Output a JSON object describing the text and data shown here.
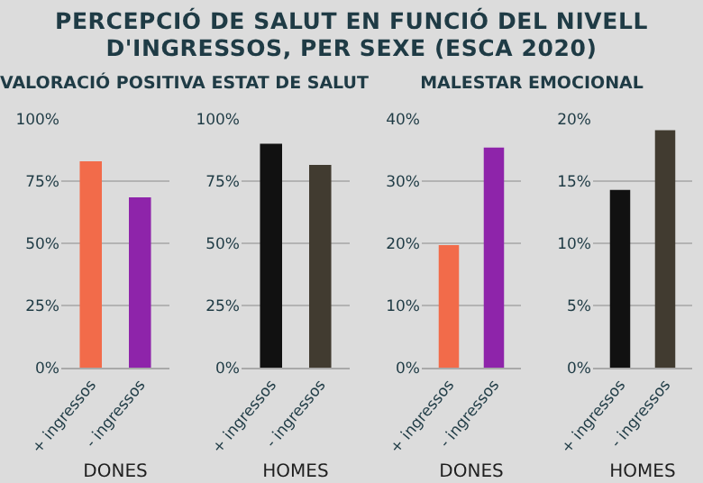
{
  "chart_data": [
    {
      "type": "bar",
      "title": "PERCEPCIÓ DE SALUT EN FUNCIÓ DEL NIVELL D'INGRESSOS, PER SEXE (ESCA 2020)",
      "subtitle": "VALORACIÓ POSITIVA ESTAT DE SALUT",
      "xlabel": "DONES",
      "categories": [
        "+ ingressos",
        "- ingressos"
      ],
      "values": [
        83,
        68.5
      ],
      "colors": [
        "#f26b4a",
        "#8e24aa"
      ],
      "ylim": [
        0,
        100
      ],
      "yticks": [
        {
          "value": 0,
          "label": "0%"
        },
        {
          "value": 25,
          "label": "25%"
        },
        {
          "value": 50,
          "label": "50%"
        },
        {
          "value": 75,
          "label": "75%"
        },
        {
          "value": 100,
          "label": "100%"
        }
      ],
      "grid": "y"
    },
    {
      "type": "bar",
      "xlabel": "HOMES",
      "categories": [
        "+ ingressos",
        "- ingressos"
      ],
      "values": [
        90,
        81.5
      ],
      "colors": [
        "#111111",
        "#413b30"
      ],
      "ylim": [
        0,
        100
      ],
      "yticks": [
        {
          "value": 0,
          "label": "0%"
        },
        {
          "value": 25,
          "label": "25%"
        },
        {
          "value": 50,
          "label": "50%"
        },
        {
          "value": 75,
          "label": "75%"
        },
        {
          "value": 100,
          "label": "100%"
        }
      ],
      "grid": "y"
    },
    {
      "type": "bar",
      "subtitle": "MALESTAR EMOCIONAL",
      "xlabel": "DONES",
      "categories": [
        "+ ingressos",
        "- ingressos"
      ],
      "values": [
        19.7,
        35.4
      ],
      "colors": [
        "#f26b4a",
        "#8e24aa"
      ],
      "ylim": [
        0,
        40
      ],
      "yticks": [
        {
          "value": 0,
          "label": "0%"
        },
        {
          "value": 10,
          "label": "10%"
        },
        {
          "value": 20,
          "label": "20%"
        },
        {
          "value": 30,
          "label": "30%"
        },
        {
          "value": 40,
          "label": "40%"
        }
      ],
      "grid": "y"
    },
    {
      "type": "bar",
      "xlabel": "HOMES",
      "categories": [
        "+ ingressos",
        "- ingressos"
      ],
      "values": [
        14.3,
        19.1
      ],
      "colors": [
        "#111111",
        "#413b30"
      ],
      "ylim": [
        0,
        20
      ],
      "yticks": [
        {
          "value": 0,
          "label": "0%"
        },
        {
          "value": 5,
          "label": "5%"
        },
        {
          "value": 10,
          "label": "10%"
        },
        {
          "value": 15,
          "label": "15%"
        },
        {
          "value": 20,
          "label": "20%"
        }
      ],
      "grid": "y"
    }
  ]
}
